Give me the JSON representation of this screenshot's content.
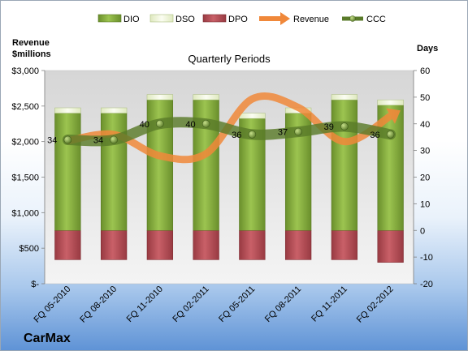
{
  "company": "CarMax",
  "chart_data": {
    "type": "bar",
    "title": "Quarterly Periods",
    "categories": [
      "FQ 05-2010",
      "FQ 08-2010",
      "FQ 11-2010",
      "FQ 02-2011",
      "FQ 05-2011",
      "FQ 08-2011",
      "FQ 11-2011",
      "FQ 02-2012"
    ],
    "left_axis": {
      "label_line1": "Revenue",
      "label_line2": "$millions",
      "range": [
        0,
        3000
      ],
      "ticks": [
        0,
        500,
        1000,
        1500,
        2000,
        2500,
        3000
      ],
      "tick_labels": [
        "$-",
        "$500",
        "$1,000",
        "$1,500",
        "$2,000",
        "$2,500",
        "$3,000"
      ]
    },
    "right_axis": {
      "label": "Days",
      "range": [
        -20,
        60
      ],
      "ticks": [
        -20,
        -10,
        0,
        10,
        20,
        30,
        40,
        50,
        60
      ],
      "tick_labels": [
        "-20",
        "-10",
        "0",
        "10",
        "20",
        "30",
        "40",
        "50",
        "60"
      ]
    },
    "legend": [
      "DIO",
      "DSO",
      "DPO",
      "Revenue",
      "CCC"
    ],
    "legend_position": "top",
    "grid": false,
    "series": [
      {
        "name": "DIO",
        "type": "stacked-bar",
        "axis": "right",
        "color": "#7fa33a",
        "values": [
          44,
          44,
          49,
          49,
          42,
          44,
          49,
          47
        ]
      },
      {
        "name": "DSO",
        "type": "stacked-bar",
        "axis": "right",
        "color": "#eef5d8",
        "values": [
          2,
          2,
          2,
          2,
          2,
          2,
          2,
          2
        ]
      },
      {
        "name": "DPO",
        "type": "negative-bar",
        "axis": "right",
        "color": "#b5474f",
        "values": [
          -11,
          -11,
          -11,
          -11,
          -11,
          -11,
          -11,
          -12
        ]
      },
      {
        "name": "Revenue",
        "type": "line",
        "axis": "left",
        "color": "#f0883a",
        "values": [
          2010,
          2100,
          1800,
          1830,
          2600,
          2480,
          2000,
          2360
        ]
      },
      {
        "name": "CCC",
        "type": "line",
        "axis": "right",
        "color": "#5a7b2a",
        "values": [
          34,
          34,
          40,
          40,
          36,
          37,
          39,
          36
        ]
      }
    ],
    "data_labels": [
      "34",
      "34",
      "40",
      "40",
      "36",
      "37",
      "39",
      "36"
    ]
  }
}
